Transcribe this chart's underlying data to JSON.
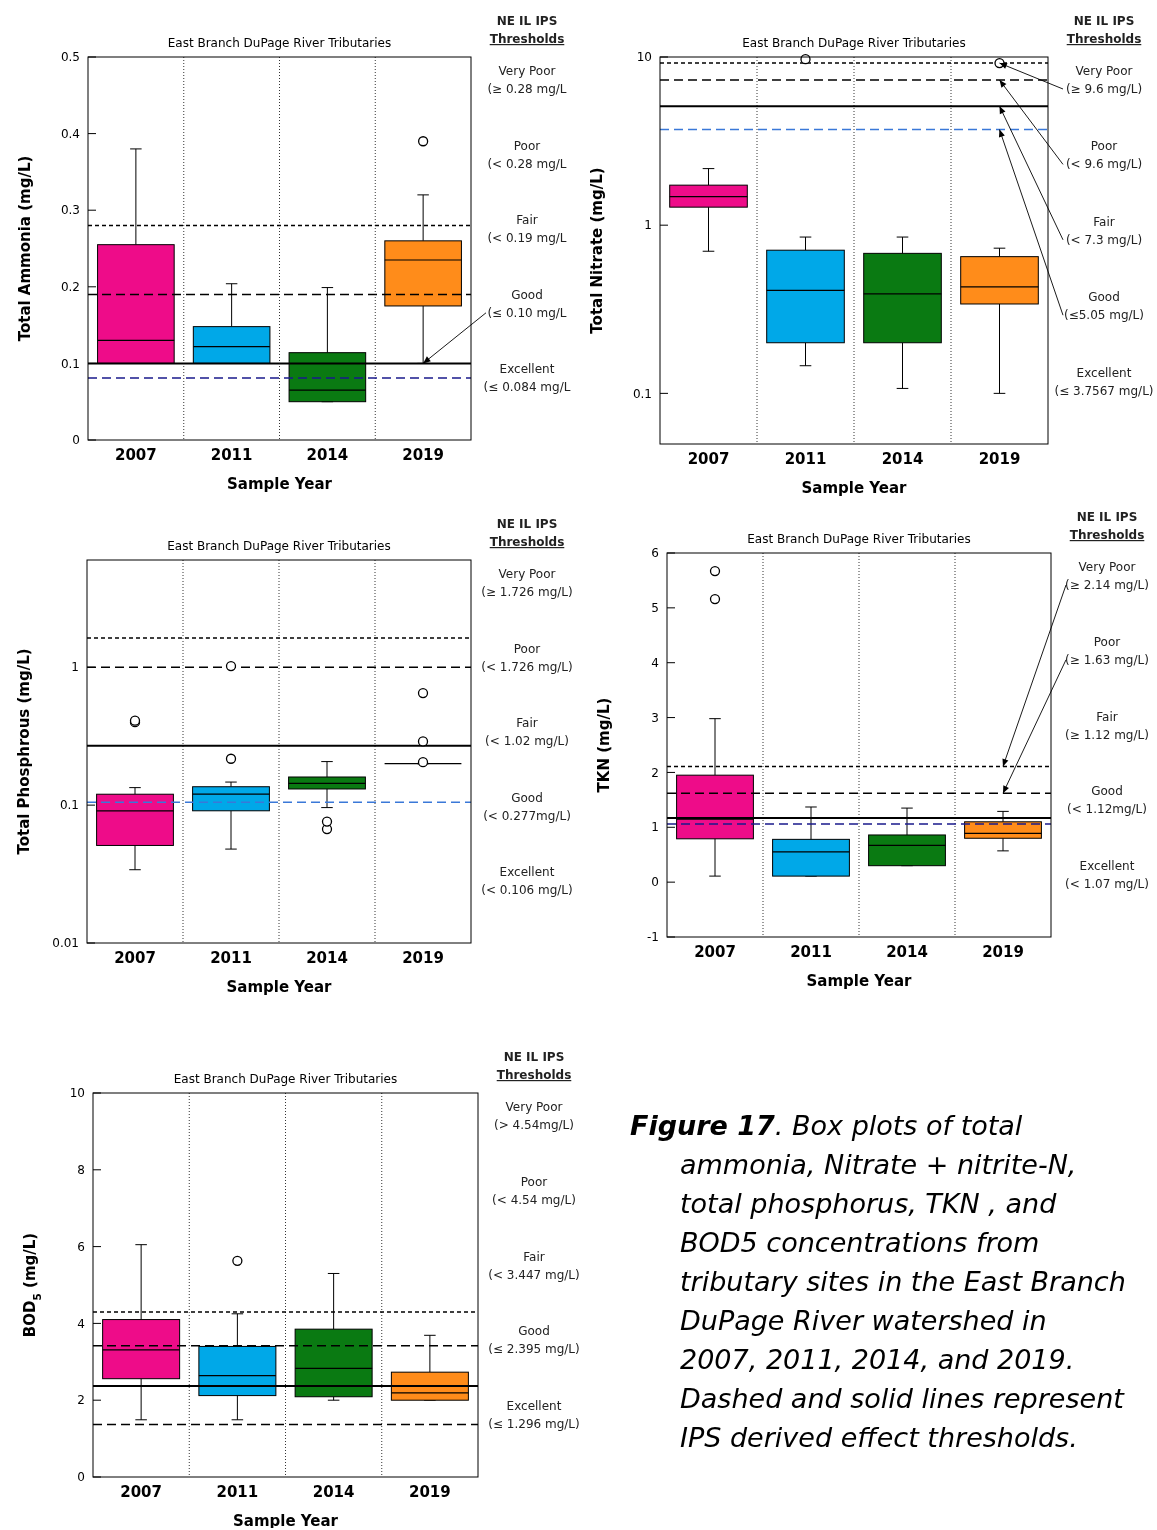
{
  "chart_data": [
    {
      "type": "box",
      "title": "East Branch DuPage River Tributaries",
      "xlabel": "Sample Year",
      "ylabel": "Total Ammonia (mg/L)",
      "categories": [
        "2007",
        "2011",
        "2014",
        "2019"
      ],
      "colors": [
        "#ee0c89",
        "#00a8e8",
        "#0a7a12",
        "#ff8c1a"
      ],
      "ylim": [
        0,
        0.5
      ],
      "yticks": [
        0,
        0.1,
        0.2,
        0.3,
        0.4,
        0.5
      ],
      "grid": "x",
      "boxes": [
        {
          "low": 0.1,
          "q1": 0.1,
          "median": 0.13,
          "q3": 0.255,
          "high": 0.38
        },
        {
          "low": 0.1,
          "q1": 0.1,
          "median": 0.122,
          "q3": 0.148,
          "high": 0.204
        },
        {
          "low": 0.05,
          "q1": 0.05,
          "median": 0.065,
          "q3": 0.114,
          "high": 0.199
        },
        {
          "low": 0.1,
          "q1": 0.175,
          "median": 0.235,
          "q3": 0.26,
          "high": 0.32,
          "outliers": [
            0.39
          ]
        }
      ],
      "ref_lines": [
        {
          "axis": "y",
          "value": 0.28,
          "color": "#000000",
          "line_style": "dotted"
        },
        {
          "axis": "y",
          "value": 0.19,
          "color": "#000000",
          "line_style": "dashed"
        },
        {
          "axis": "y",
          "value": 0.1,
          "color": "#000000",
          "line_style": "solid"
        },
        {
          "axis": "y",
          "value": 0.081,
          "color": "#1a1a8c",
          "line_style": "dashed"
        }
      ],
      "annotations": [
        "NE IL IPS",
        "Thresholds",
        "Very Poor",
        "(≥ 0.28 mg/L",
        "Poor",
        "(< 0.28 mg/L",
        "Fair",
        "(< 0.19 mg/L",
        "Good",
        {
          "text": "(≤ 0.10 mg/L",
          "x": "2019",
          "y": 0.1
        },
        "Excellent",
        "(≤ 0.084 mg/L"
      ]
    },
    {
      "type": "box",
      "title": "East Branch DuPage River Tributaries",
      "xlabel": "Sample Year",
      "ylabel": "Total Nitrate (mg/L)",
      "categories": [
        "2007",
        "2011",
        "2014",
        "2019"
      ],
      "colors": [
        "#ee0c89",
        "#00a8e8",
        "#0a7a12",
        "#ff8c1a"
      ],
      "log": true,
      "ylim": [
        0.05,
        10
      ],
      "yticks": [
        0.1,
        1,
        10
      ],
      "grid": "x",
      "boxes": [
        {
          "low": 0.7,
          "q1": 1.28,
          "median": 1.48,
          "q3": 1.73,
          "high": 2.17
        },
        {
          "low": 0.146,
          "q1": 0.2,
          "median": 0.41,
          "q3": 0.71,
          "high": 0.85,
          "outliers": [
            9.7
          ]
        },
        {
          "low": 0.107,
          "q1": 0.2,
          "median": 0.39,
          "q3": 0.68,
          "high": 0.85
        },
        {
          "low": 0.1,
          "q1": 0.34,
          "median": 0.43,
          "q3": 0.65,
          "high": 0.73,
          "outliers": [
            9.2
          ]
        }
      ],
      "ref_lines": [
        {
          "axis": "y",
          "value": 9.2,
          "color": "#000000",
          "line_style": "dotted"
        },
        {
          "axis": "y",
          "value": 7.3,
          "color": "#000000",
          "line_style": "dashed"
        },
        {
          "axis": "y",
          "value": 5.1,
          "color": "#000000",
          "line_style": "solid"
        },
        {
          "axis": "y",
          "value": 3.7,
          "color": "#3a78d8",
          "line_style": "dashed"
        }
      ],
      "annotations": [
        "NE IL IPS",
        "Thresholds",
        "Very Poor",
        {
          "text": "(≥ 9.6 mg/L)",
          "x": "2019",
          "y": 9.2
        },
        "Poor",
        {
          "text": "(< 9.6 mg/L)",
          "x": "2019",
          "y": 7.3
        },
        "Fair",
        {
          "text": "(< 7.3 mg/L)",
          "x": "2019",
          "y": 5.1
        },
        "Good",
        {
          "text": "(≤5.05 mg/L)",
          "x": "2019",
          "y": 3.7
        },
        "Excellent",
        "(≤ 3.7567 mg/L)"
      ]
    },
    {
      "type": "box",
      "title": "East Branch DuPage River Tributaries",
      "xlabel": "Sample Year",
      "ylabel": "Total Phosphrous (mg/L)",
      "categories": [
        "2007",
        "2011",
        "2014",
        "2019"
      ],
      "colors": [
        "#ee0c89",
        "#00a8e8",
        "#0a7a12",
        "#000000"
      ],
      "log": true,
      "ylim": [
        0.01,
        6
      ],
      "yticks": [
        0.01,
        0.1,
        1
      ],
      "grid": "x",
      "boxes": [
        {
          "low": 0.034,
          "q1": 0.051,
          "median": 0.091,
          "q3": 0.12,
          "high": 0.134,
          "outliers": [
            0.4,
            0.41
          ]
        },
        {
          "low": 0.048,
          "q1": 0.091,
          "median": 0.12,
          "q3": 0.136,
          "high": 0.147,
          "outliers": [
            0.217,
            1.02
          ]
        },
        {
          "low": 0.096,
          "q1": 0.131,
          "median": 0.144,
          "q3": 0.16,
          "high": 0.207,
          "outliers": [
            0.067,
            0.076
          ]
        },
        {
          "low": 0.2,
          "q1": 0.2,
          "median": 0.2,
          "q3": 0.2,
          "high": 0.2,
          "outliers": [
            0.205,
            0.29,
            0.65
          ]
        }
      ],
      "ref_lines": [
        {
          "axis": "y",
          "value": 1.63,
          "color": "#000000",
          "line_style": "dotted"
        },
        {
          "axis": "y",
          "value": 1.0,
          "color": "#000000",
          "line_style": "dashed"
        },
        {
          "axis": "y",
          "value": 0.27,
          "color": "#000000",
          "line_style": "solid"
        },
        {
          "axis": "y",
          "value": 0.105,
          "color": "#3a78d8",
          "line_style": "dashed"
        }
      ],
      "annotations": [
        "NE IL IPS",
        "Thresholds",
        "Very Poor",
        "(≥ 1.726 mg/L)",
        "Poor",
        "(< 1.726 mg/L)",
        "Fair",
        "(< 1.02 mg/L)",
        "Good",
        "(< 0.277mg/L)",
        "Excellent",
        "(< 0.106 mg/L)"
      ]
    },
    {
      "type": "box",
      "title": "East Branch DuPage River Tributaries",
      "xlabel": "Sample Year",
      "ylabel": "TKN (mg/L)",
      "categories": [
        "2007",
        "2011",
        "2014",
        "2019"
      ],
      "colors": [
        "#ee0c89",
        "#00a8e8",
        "#0a7a12",
        "#ff8c1a"
      ],
      "ylim": [
        -1,
        6
      ],
      "yticks": [
        -1,
        0,
        1,
        2,
        3,
        4,
        5,
        6
      ],
      "grid": "x",
      "boxes": [
        {
          "low": 0.11,
          "q1": 0.79,
          "median": 1.15,
          "q3": 1.95,
          "high": 2.98,
          "outliers": [
            5.16,
            5.67
          ]
        },
        {
          "low": 0.11,
          "q1": 0.11,
          "median": 0.55,
          "q3": 0.78,
          "high": 1.37
        },
        {
          "low": 0.3,
          "q1": 0.3,
          "median": 0.67,
          "q3": 0.86,
          "high": 1.35
        },
        {
          "low": 0.57,
          "q1": 0.8,
          "median": 0.89,
          "q3": 1.1,
          "high": 1.29
        }
      ],
      "ref_lines": [
        {
          "axis": "y",
          "value": 2.11,
          "color": "#000000",
          "line_style": "dotted"
        },
        {
          "axis": "y",
          "value": 1.62,
          "color": "#000000",
          "line_style": "dashed"
        },
        {
          "axis": "y",
          "value": 1.17,
          "color": "#000000",
          "line_style": "solid"
        },
        {
          "axis": "y",
          "value": 1.06,
          "color": "#1a1a8c",
          "line_style": "dashed"
        }
      ],
      "annotations": [
        "NE IL IPS",
        "Thresholds",
        "Very Poor",
        {
          "text": "(≥ 2.14 mg/L)",
          "x": "2019",
          "y": 2.11
        },
        "Poor",
        {
          "text": "(≥ 1.63 mg/L)",
          "x": "2019",
          "y": 1.62
        },
        "Fair",
        "(≥ 1.12 mg/L)",
        "Good",
        "(< 1.12mg/L)",
        "Excellent",
        "(< 1.07 mg/L)"
      ]
    },
    {
      "type": "box",
      "title": "East Branch DuPage River Tributaries",
      "xlabel": "Sample Year",
      "ylabel": "BOD$_{5}$ (mg/L)",
      "categories": [
        "2007",
        "2011",
        "2014",
        "2019"
      ],
      "colors": [
        "#ee0c89",
        "#00a8e8",
        "#0a7a12",
        "#ff8c1a"
      ],
      "ylim": [
        0,
        10
      ],
      "yticks": [
        0,
        2,
        4,
        6,
        8,
        10
      ],
      "grid": "x",
      "boxes": [
        {
          "low": 1.49,
          "q1": 2.56,
          "median": 3.31,
          "q3": 4.1,
          "high": 6.05
        },
        {
          "low": 1.49,
          "q1": 2.12,
          "median": 2.64,
          "q3": 3.4,
          "high": 4.25,
          "outliers": [
            5.63
          ]
        },
        {
          "low": 2.0,
          "q1": 2.09,
          "median": 2.83,
          "q3": 3.85,
          "high": 5.3
        },
        {
          "low": 2.0,
          "q1": 2.0,
          "median": 2.19,
          "q3": 2.73,
          "high": 3.69
        }
      ],
      "ref_lines": [
        {
          "axis": "y",
          "value": 4.3,
          "color": "#000000",
          "line_style": "dotted"
        },
        {
          "axis": "y",
          "value": 3.42,
          "color": "#000000",
          "line_style": "dashed"
        },
        {
          "axis": "y",
          "value": 2.37,
          "color": "#000000",
          "line_style": "solid"
        },
        {
          "axis": "y",
          "value": 1.37,
          "color": "#000000",
          "line_style": "dashed"
        }
      ],
      "annotations": [
        "NE IL IPS",
        "Thresholds",
        "Very Poor",
        "(> 4.54mg/L)",
        "Poor",
        "(< 4.54 mg/L)",
        "Fair",
        "(< 3.447 mg/L)",
        "Good",
        "(≤ 2.395 mg/L)",
        "Excellent",
        "(≤ 1.296 mg/L)"
      ]
    },
    {
      "type": "other",
      "title": "Figure 17",
      "annotations": [
        ". Box plots of total ammonia, Nitrate + nitrite-N, total phosphorus, TKN , and BOD5 concentrations from tributary sites in the East Branch DuPage River watershed in 2007, 2011, 2014, and 2019. Dashed and solid lines represent IPS derived effect thresholds."
      ]
    }
  ]
}
